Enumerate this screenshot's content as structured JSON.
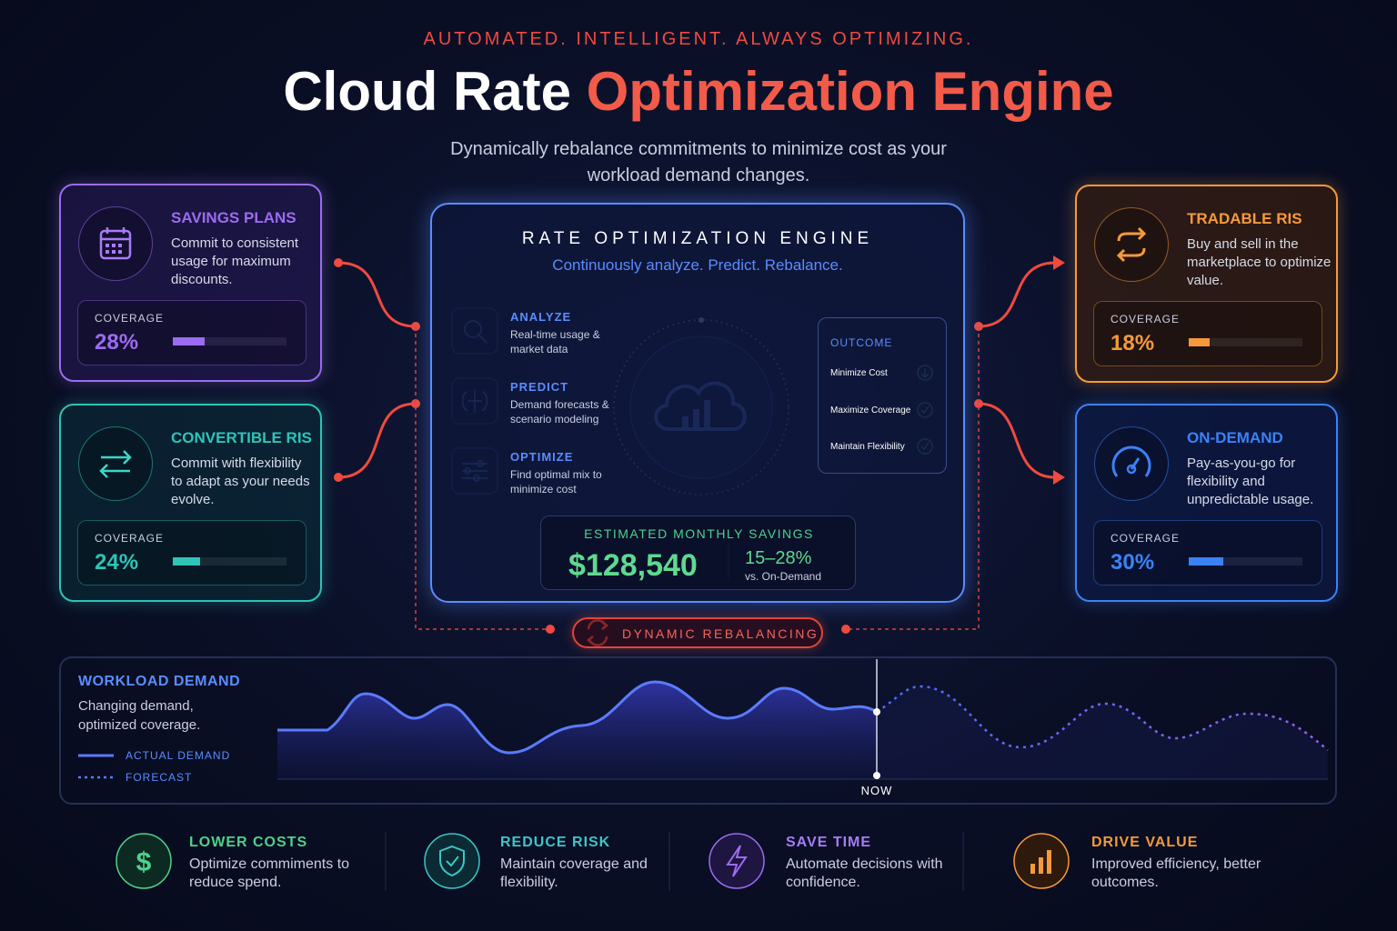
{
  "header": {
    "tagline": "AUTOMATED. INTELLIGENT. ALWAYS OPTIMIZING.",
    "title_plain": "Cloud Rate",
    "title_accent": "Optimization Engine",
    "subtitle": "Dynamically rebalance commitments to minimize cost as your workload demand changes."
  },
  "cards": [
    {
      "title": "SAVINGS PLANS",
      "text": "Commit to consistent usage for maximum discounts.",
      "coverage_title": "COVERAGE",
      "coverage": {
        "value": 28,
        "label": "28%"
      }
    },
    {
      "title": "CONVERTIBLE RIS",
      "text": "Commit with flexibility to adapt as your needs evolve.",
      "coverage_title": "COVERAGE",
      "coverage": {
        "value": 24,
        "label": "24%"
      }
    },
    {
      "title": "TRADABLE RIS",
      "text": "Buy and sell in the marketplace to optimize value.",
      "coverage_title": "COVERAGE",
      "coverage": {
        "value": 18,
        "label": "18%"
      }
    },
    {
      "title": "ON-DEMAND",
      "text": "Pay-as-you-go for flexibility and unpredictable usage.",
      "coverage_title": "COVERAGE",
      "coverage": {
        "value": 30,
        "label": "30%"
      }
    }
  ],
  "engine": {
    "title": "RATE OPTIMIZATION ENGINE",
    "subtitle": "Continuously analyze. Predict. Rebalance.",
    "steps": [
      {
        "label": "ANALYZE",
        "text": "Real-time usage & market data"
      },
      {
        "label": "PREDICT",
        "text": "Demand forecasts & scenario modeling"
      },
      {
        "label": "OPTIMIZE",
        "text": "Find optimal mix to minimize cost"
      }
    ],
    "outcome": {
      "title": "OUTCOME",
      "items": [
        "Minimize Cost",
        "Maximize Coverage",
        "Maintain Flexibility"
      ]
    },
    "savings": {
      "title": "ESTIMATED MONTHLY SAVINGS",
      "amount": "$128,540",
      "range": "15–28%",
      "range_note": "vs. On-Demand"
    }
  },
  "rebalancing": "DYNAMIC REBALANCING",
  "workload": {
    "title": "WORKLOAD DEMAND",
    "text": "Changing demand, optimized coverage.",
    "legend": [
      "ACTUAL DEMAND",
      "FORECAST"
    ],
    "now": "NOW"
  },
  "benefits": [
    {
      "title": "LOWER COSTS",
      "text": "Optimize commiments to reduce spend."
    },
    {
      "title": "REDUCE RISK",
      "text": "Maintain coverage and flexibility."
    },
    {
      "title": "SAVE TIME",
      "text": "Automate decisions with confidence."
    },
    {
      "title": "DRIVE VALUE",
      "text": "Improved efficiency, better outcomes."
    }
  ]
}
